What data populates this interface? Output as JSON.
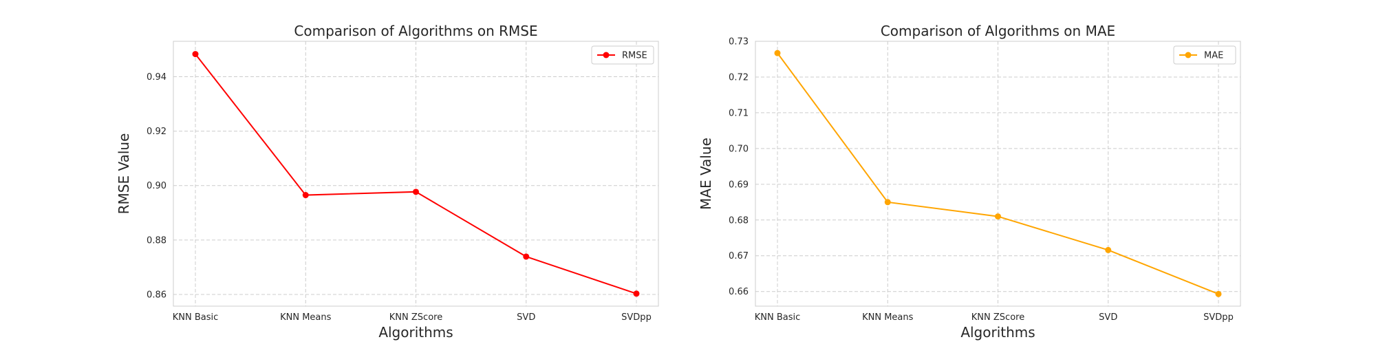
{
  "chart_data": [
    {
      "type": "line",
      "title": "Comparison of Algorithms on RMSE",
      "xlabel": "Algorithms",
      "ylabel": "RMSE Value",
      "categories": [
        "KNN Basic",
        "KNN Means",
        "KNN ZScore",
        "SVD",
        "SVDpp"
      ],
      "series": [
        {
          "name": "RMSE",
          "color": "#ff0000",
          "values": [
            0.9483,
            0.8965,
            0.8977,
            0.8739,
            0.8603
          ]
        }
      ],
      "ylim": [
        0.8557,
        0.953
      ],
      "yticks": [
        0.86,
        0.88,
        0.9,
        0.92,
        0.94
      ],
      "ytick_labels": [
        "0.86",
        "0.88",
        "0.90",
        "0.92",
        "0.94"
      ],
      "grid": true,
      "legend": "top-right"
    },
    {
      "type": "line",
      "title": "Comparison of Algorithms on MAE",
      "xlabel": "Algorithms",
      "ylabel": "MAE Value",
      "categories": [
        "KNN Basic",
        "KNN Means",
        "KNN ZScore",
        "SVD",
        "SVDpp"
      ],
      "series": [
        {
          "name": "MAE",
          "color": "#ffa500",
          "values": [
            0.7267,
            0.685,
            0.681,
            0.6716,
            0.6593
          ]
        }
      ],
      "ylim": [
        0.6559,
        0.73
      ],
      "yticks": [
        0.66,
        0.67,
        0.68,
        0.69,
        0.7,
        0.71,
        0.72,
        0.73
      ],
      "ytick_labels": [
        "0.66",
        "0.67",
        "0.68",
        "0.69",
        "0.70",
        "0.71",
        "0.72",
        "0.73"
      ],
      "grid": true,
      "legend": "top-right"
    }
  ]
}
